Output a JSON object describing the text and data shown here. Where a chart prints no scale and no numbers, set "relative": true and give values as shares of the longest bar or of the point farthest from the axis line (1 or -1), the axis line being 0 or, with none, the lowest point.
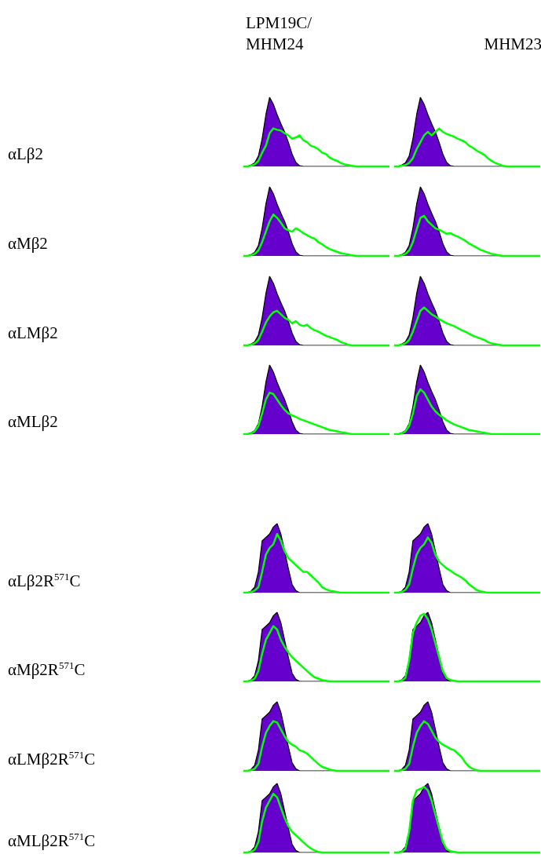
{
  "chart_data": [
    {
      "type": "area",
      "relative": true,
      "title": "LPM19C/MHM24",
      "ylabel": "αLβ2",
      "categories": [
        null,
        null,
        null,
        null,
        null,
        null,
        null,
        null,
        null,
        null,
        null,
        null,
        null,
        null,
        null,
        null,
        null,
        null,
        null,
        null,
        null,
        null,
        null,
        null,
        null,
        null,
        null,
        null,
        null,
        null,
        null,
        null,
        null,
        null,
        null,
        null,
        null,
        null,
        null,
        null
      ],
      "series": [
        {
          "color": "#6600cc",
          "values": [
            0,
            0,
            0.02,
            0.05,
            0.15,
            0.4,
            0.75,
            1,
            0.9,
            0.75,
            0.62,
            0.5,
            0.35,
            0.18,
            0.06,
            0.01,
            0,
            0,
            0,
            0,
            0,
            0,
            0,
            0,
            0,
            0,
            0,
            0,
            0,
            0,
            0,
            0,
            0,
            0,
            0,
            0,
            0,
            0,
            0,
            0
          ]
        },
        {
          "type": "line",
          "color": "#00ff00",
          "values": [
            0,
            0,
            0.01,
            0.03,
            0.08,
            0.2,
            0.3,
            0.48,
            0.55,
            0.53,
            0.52,
            0.48,
            0.45,
            0.4,
            0.42,
            0.45,
            0.38,
            0.35,
            0.3,
            0.28,
            0.25,
            0.2,
            0.18,
            0.13,
            0.1,
            0.08,
            0.05,
            0.03,
            0.02,
            0.01,
            0,
            0,
            0,
            0,
            0,
            0,
            0,
            0,
            0,
            0
          ]
        }
      ]
    },
    {
      "type": "area",
      "relative": true,
      "title": "MHM23",
      "categories": [
        null,
        null,
        null,
        null,
        null,
        null,
        null,
        null,
        null,
        null,
        null,
        null,
        null,
        null,
        null,
        null,
        null,
        null,
        null,
        null,
        null,
        null,
        null,
        null,
        null,
        null,
        null,
        null,
        null,
        null,
        null,
        null,
        null,
        null,
        null,
        null,
        null,
        null,
        null,
        null
      ],
      "series": [
        {
          "color": "#6600cc",
          "values": [
            0,
            0,
            0.02,
            0.05,
            0.15,
            0.4,
            0.75,
            1,
            0.9,
            0.75,
            0.62,
            0.5,
            0.35,
            0.18,
            0.06,
            0.01,
            0,
            0,
            0,
            0,
            0,
            0,
            0,
            0,
            0,
            0,
            0,
            0,
            0,
            0,
            0,
            0,
            0,
            0,
            0,
            0,
            0,
            0,
            0,
            0
          ]
        },
        {
          "type": "line",
          "color": "#00ff00",
          "values": [
            0,
            0,
            0.01,
            0.02,
            0.05,
            0.12,
            0.25,
            0.35,
            0.45,
            0.5,
            0.45,
            0.5,
            0.55,
            0.5,
            0.47,
            0.45,
            0.43,
            0.4,
            0.38,
            0.35,
            0.3,
            0.27,
            0.23,
            0.2,
            0.17,
            0.12,
            0.08,
            0.05,
            0.03,
            0.01,
            0,
            0,
            0,
            0,
            0,
            0,
            0,
            0,
            0,
            0
          ]
        }
      ]
    },
    {
      "type": "area",
      "relative": true,
      "ylabel": "αMβ2",
      "categories": [
        null,
        null,
        null,
        null,
        null,
        null,
        null,
        null,
        null,
        null,
        null,
        null,
        null,
        null,
        null,
        null,
        null,
        null,
        null,
        null,
        null,
        null,
        null,
        null,
        null,
        null,
        null,
        null,
        null,
        null,
        null,
        null,
        null,
        null,
        null,
        null,
        null,
        null,
        null,
        null
      ],
      "series": [
        {
          "color": "#6600cc",
          "values": [
            0,
            0,
            0.02,
            0.05,
            0.15,
            0.4,
            0.75,
            1,
            0.9,
            0.75,
            0.62,
            0.5,
            0.35,
            0.18,
            0.06,
            0.01,
            0,
            0,
            0,
            0,
            0,
            0,
            0,
            0,
            0,
            0,
            0,
            0,
            0,
            0,
            0,
            0,
            0,
            0,
            0,
            0,
            0,
            0,
            0,
            0
          ]
        },
        {
          "type": "line",
          "color": "#00ff00",
          "values": [
            0,
            0,
            0.01,
            0.03,
            0.08,
            0.2,
            0.35,
            0.5,
            0.6,
            0.55,
            0.48,
            0.4,
            0.37,
            0.35,
            0.4,
            0.37,
            0.33,
            0.3,
            0.27,
            0.25,
            0.2,
            0.17,
            0.13,
            0.1,
            0.08,
            0.06,
            0.04,
            0.03,
            0.02,
            0.01,
            0,
            0,
            0,
            0,
            0,
            0,
            0,
            0,
            0,
            0
          ]
        }
      ]
    },
    {
      "type": "area",
      "relative": true,
      "categories": [
        null,
        null,
        null,
        null,
        null,
        null,
        null,
        null,
        null,
        null,
        null,
        null,
        null,
        null,
        null,
        null,
        null,
        null,
        null,
        null,
        null,
        null,
        null,
        null,
        null,
        null,
        null,
        null,
        null,
        null,
        null,
        null,
        null,
        null,
        null,
        null,
        null,
        null,
        null,
        null
      ],
      "series": [
        {
          "color": "#6600cc",
          "values": [
            0,
            0,
            0.02,
            0.05,
            0.15,
            0.4,
            0.75,
            1,
            0.9,
            0.75,
            0.62,
            0.5,
            0.35,
            0.18,
            0.06,
            0.01,
            0,
            0,
            0,
            0,
            0,
            0,
            0,
            0,
            0,
            0,
            0,
            0,
            0,
            0,
            0,
            0,
            0,
            0,
            0,
            0,
            0,
            0,
            0,
            0
          ]
        },
        {
          "type": "line",
          "color": "#00ff00",
          "values": [
            0,
            0,
            0.01,
            0.03,
            0.08,
            0.2,
            0.38,
            0.55,
            0.58,
            0.5,
            0.45,
            0.4,
            0.38,
            0.35,
            0.32,
            0.33,
            0.3,
            0.28,
            0.25,
            0.22,
            0.18,
            0.15,
            0.12,
            0.09,
            0.07,
            0.05,
            0.03,
            0.02,
            0.01,
            0,
            0,
            0,
            0,
            0,
            0,
            0,
            0,
            0,
            0,
            0
          ]
        }
      ]
    },
    {
      "type": "area",
      "relative": true,
      "ylabel": "αLMβ2",
      "categories": [
        null,
        null,
        null,
        null,
        null,
        null,
        null,
        null,
        null,
        null,
        null,
        null,
        null,
        null,
        null,
        null,
        null,
        null,
        null,
        null,
        null,
        null,
        null,
        null,
        null,
        null,
        null,
        null,
        null,
        null,
        null,
        null,
        null,
        null,
        null,
        null,
        null,
        null,
        null,
        null
      ],
      "series": [
        {
          "color": "#6600cc",
          "values": [
            0,
            0,
            0.02,
            0.05,
            0.15,
            0.4,
            0.75,
            1,
            0.9,
            0.75,
            0.62,
            0.5,
            0.35,
            0.18,
            0.06,
            0.01,
            0,
            0,
            0,
            0,
            0,
            0,
            0,
            0,
            0,
            0,
            0,
            0,
            0,
            0,
            0,
            0,
            0,
            0,
            0,
            0,
            0,
            0,
            0,
            0
          ]
        },
        {
          "type": "line",
          "color": "#00ff00",
          "values": [
            0,
            0,
            0.01,
            0.03,
            0.08,
            0.2,
            0.33,
            0.42,
            0.48,
            0.5,
            0.45,
            0.4,
            0.37,
            0.32,
            0.35,
            0.3,
            0.28,
            0.3,
            0.25,
            0.22,
            0.2,
            0.17,
            0.14,
            0.12,
            0.1,
            0.08,
            0.05,
            0.03,
            0.01,
            0,
            0,
            0,
            0,
            0,
            0,
            0,
            0,
            0,
            0,
            0
          ]
        }
      ]
    },
    {
      "type": "area",
      "relative": true,
      "categories": [
        null,
        null,
        null,
        null,
        null,
        null,
        null,
        null,
        null,
        null,
        null,
        null,
        null,
        null,
        null,
        null,
        null,
        null,
        null,
        null,
        null,
        null,
        null,
        null,
        null,
        null,
        null,
        null,
        null,
        null,
        null,
        null,
        null,
        null,
        null,
        null,
        null,
        null,
        null,
        null
      ],
      "series": [
        {
          "color": "#6600cc",
          "values": [
            0,
            0,
            0.02,
            0.05,
            0.15,
            0.4,
            0.75,
            1,
            0.9,
            0.75,
            0.62,
            0.5,
            0.35,
            0.18,
            0.06,
            0.01,
            0,
            0,
            0,
            0,
            0,
            0,
            0,
            0,
            0,
            0,
            0,
            0,
            0,
            0,
            0,
            0,
            0,
            0,
            0,
            0,
            0,
            0,
            0,
            0
          ]
        },
        {
          "type": "line",
          "color": "#00ff00",
          "values": [
            0,
            0,
            0.01,
            0.03,
            0.08,
            0.2,
            0.35,
            0.5,
            0.55,
            0.5,
            0.45,
            0.42,
            0.38,
            0.35,
            0.32,
            0.3,
            0.28,
            0.25,
            0.22,
            0.2,
            0.17,
            0.14,
            0.12,
            0.1,
            0.08,
            0.05,
            0.03,
            0.02,
            0.01,
            0,
            0,
            0,
            0,
            0,
            0,
            0,
            0,
            0,
            0,
            0
          ]
        }
      ]
    },
    {
      "type": "area",
      "relative": true,
      "ylabel": "αMLβ2",
      "categories": [
        null,
        null,
        null,
        null,
        null,
        null,
        null,
        null,
        null,
        null,
        null,
        null,
        null,
        null,
        null,
        null,
        null,
        null,
        null,
        null,
        null,
        null,
        null,
        null,
        null,
        null,
        null,
        null,
        null,
        null,
        null,
        null,
        null,
        null,
        null,
        null,
        null,
        null,
        null,
        null
      ],
      "series": [
        {
          "color": "#6600cc",
          "values": [
            0,
            0,
            0.02,
            0.05,
            0.15,
            0.4,
            0.75,
            1,
            0.9,
            0.75,
            0.62,
            0.5,
            0.35,
            0.18,
            0.06,
            0.01,
            0,
            0,
            0,
            0,
            0,
            0,
            0,
            0,
            0,
            0,
            0,
            0,
            0,
            0,
            0,
            0,
            0,
            0,
            0,
            0,
            0,
            0,
            0,
            0
          ]
        },
        {
          "type": "line",
          "color": "#00ff00",
          "values": [
            0,
            0,
            0.01,
            0.04,
            0.12,
            0.3,
            0.5,
            0.6,
            0.58,
            0.5,
            0.42,
            0.35,
            0.3,
            0.27,
            0.25,
            0.22,
            0.2,
            0.18,
            0.16,
            0.14,
            0.12,
            0.1,
            0.08,
            0.06,
            0.05,
            0.04,
            0.03,
            0.02,
            0.01,
            0,
            0,
            0,
            0,
            0,
            0,
            0,
            0,
            0,
            0,
            0
          ]
        }
      ]
    },
    {
      "type": "area",
      "relative": true,
      "categories": [
        null,
        null,
        null,
        null,
        null,
        null,
        null,
        null,
        null,
        null,
        null,
        null,
        null,
        null,
        null,
        null,
        null,
        null,
        null,
        null,
        null,
        null,
        null,
        null,
        null,
        null,
        null,
        null,
        null,
        null,
        null,
        null,
        null,
        null,
        null,
        null,
        null,
        null,
        null,
        null
      ],
      "series": [
        {
          "color": "#6600cc",
          "values": [
            0,
            0,
            0.02,
            0.05,
            0.15,
            0.4,
            0.75,
            1,
            0.9,
            0.75,
            0.62,
            0.5,
            0.35,
            0.18,
            0.06,
            0.01,
            0,
            0,
            0,
            0,
            0,
            0,
            0,
            0,
            0,
            0,
            0,
            0,
            0,
            0,
            0,
            0,
            0,
            0,
            0,
            0,
            0,
            0,
            0,
            0
          ]
        },
        {
          "type": "line",
          "color": "#00ff00",
          "values": [
            0,
            0,
            0.01,
            0.04,
            0.12,
            0.3,
            0.55,
            0.65,
            0.6,
            0.5,
            0.4,
            0.33,
            0.28,
            0.24,
            0.2,
            0.17,
            0.14,
            0.12,
            0.1,
            0.08,
            0.06,
            0.05,
            0.04,
            0.03,
            0.02,
            0.01,
            0,
            0,
            0,
            0,
            0,
            0,
            0,
            0,
            0,
            0,
            0,
            0,
            0,
            0
          ]
        }
      ]
    },
    {
      "type": "area",
      "relative": true,
      "ylabel": "αLβ2R$^{571}$C",
      "categories": [
        null,
        null,
        null,
        null,
        null,
        null,
        null,
        null,
        null,
        null,
        null,
        null,
        null,
        null,
        null,
        null,
        null,
        null,
        null,
        null,
        null,
        null,
        null,
        null,
        null,
        null,
        null,
        null,
        null,
        null,
        null,
        null,
        null,
        null,
        null,
        null,
        null,
        null,
        null,
        null
      ],
      "series": [
        {
          "color": "#6600cc",
          "values": [
            0,
            0,
            0.02,
            0.08,
            0.3,
            0.75,
            0.8,
            0.85,
            0.95,
            1,
            0.85,
            0.6,
            0.35,
            0.12,
            0.03,
            0,
            0,
            0,
            0,
            0,
            0,
            0,
            0,
            0,
            0,
            0,
            0,
            0,
            0,
            0,
            0,
            0,
            0,
            0,
            0,
            0,
            0,
            0,
            0,
            0
          ]
        },
        {
          "type": "line",
          "color": "#00ff00",
          "values": [
            0,
            0,
            0.01,
            0.03,
            0.08,
            0.3,
            0.55,
            0.65,
            0.7,
            0.85,
            0.75,
            0.6,
            0.5,
            0.45,
            0.4,
            0.35,
            0.3,
            0.3,
            0.25,
            0.2,
            0.15,
            0.08,
            0.05,
            0.03,
            0.02,
            0.01,
            0,
            0,
            0,
            0,
            0,
            0,
            0,
            0,
            0,
            0,
            0,
            0,
            0,
            0
          ]
        }
      ]
    },
    {
      "type": "area",
      "relative": true,
      "categories": [
        null,
        null,
        null,
        null,
        null,
        null,
        null,
        null,
        null,
        null,
        null,
        null,
        null,
        null,
        null,
        null,
        null,
        null,
        null,
        null,
        null,
        null,
        null,
        null,
        null,
        null,
        null,
        null,
        null,
        null,
        null,
        null,
        null,
        null,
        null,
        null,
        null,
        null,
        null,
        null
      ],
      "series": [
        {
          "color": "#6600cc",
          "values": [
            0,
            0,
            0.02,
            0.08,
            0.3,
            0.75,
            0.8,
            0.85,
            0.95,
            1,
            0.85,
            0.6,
            0.35,
            0.12,
            0.03,
            0,
            0,
            0,
            0,
            0,
            0,
            0,
            0,
            0,
            0,
            0,
            0,
            0,
            0,
            0,
            0,
            0,
            0,
            0,
            0,
            0,
            0,
            0,
            0,
            0
          ]
        },
        {
          "type": "line",
          "color": "#00ff00",
          "values": [
            0,
            0,
            0.01,
            0.04,
            0.12,
            0.35,
            0.55,
            0.65,
            0.7,
            0.8,
            0.72,
            0.55,
            0.45,
            0.4,
            0.35,
            0.32,
            0.28,
            0.25,
            0.22,
            0.18,
            0.12,
            0.08,
            0.04,
            0.02,
            0.01,
            0,
            0,
            0,
            0,
            0,
            0,
            0,
            0,
            0,
            0,
            0,
            0,
            0,
            0,
            0
          ]
        }
      ]
    },
    {
      "type": "area",
      "relative": true,
      "ylabel": "αMβ2R$^{571}$C",
      "categories": [
        null,
        null,
        null,
        null,
        null,
        null,
        null,
        null,
        null,
        null,
        null,
        null,
        null,
        null,
        null,
        null,
        null,
        null,
        null,
        null,
        null,
        null,
        null,
        null,
        null,
        null,
        null,
        null,
        null,
        null,
        null,
        null,
        null,
        null,
        null,
        null,
        null,
        null,
        null,
        null
      ],
      "series": [
        {
          "color": "#6600cc",
          "values": [
            0,
            0,
            0.02,
            0.08,
            0.3,
            0.75,
            0.8,
            0.85,
            0.95,
            1,
            0.85,
            0.6,
            0.35,
            0.12,
            0.03,
            0,
            0,
            0,
            0,
            0,
            0,
            0,
            0,
            0,
            0,
            0,
            0,
            0,
            0,
            0,
            0,
            0,
            0,
            0,
            0,
            0,
            0,
            0,
            0,
            0
          ]
        },
        {
          "type": "line",
          "color": "#00ff00",
          "values": [
            0,
            0,
            0.01,
            0.04,
            0.15,
            0.4,
            0.6,
            0.7,
            0.8,
            0.75,
            0.6,
            0.5,
            0.42,
            0.35,
            0.3,
            0.25,
            0.2,
            0.15,
            0.1,
            0.06,
            0.04,
            0.02,
            0.01,
            0,
            0,
            0,
            0,
            0,
            0,
            0,
            0,
            0,
            0,
            0,
            0,
            0,
            0,
            0,
            0,
            0
          ]
        }
      ]
    },
    {
      "type": "area",
      "relative": true,
      "categories": [
        null,
        null,
        null,
        null,
        null,
        null,
        null,
        null,
        null,
        null,
        null,
        null,
        null,
        null,
        null,
        null,
        null,
        null,
        null,
        null,
        null,
        null,
        null,
        null,
        null,
        null,
        null,
        null,
        null,
        null,
        null,
        null,
        null,
        null,
        null,
        null,
        null,
        null,
        null,
        null
      ],
      "series": [
        {
          "color": "#6600cc",
          "values": [
            0,
            0,
            0.02,
            0.08,
            0.3,
            0.75,
            0.8,
            0.85,
            0.95,
            1,
            0.85,
            0.6,
            0.35,
            0.12,
            0.03,
            0,
            0,
            0,
            0,
            0,
            0,
            0,
            0,
            0,
            0,
            0,
            0,
            0,
            0,
            0,
            0,
            0,
            0,
            0,
            0,
            0,
            0,
            0,
            0,
            0
          ]
        },
        {
          "type": "line",
          "color": "#00ff00",
          "values": [
            0,
            0,
            0.01,
            0.05,
            0.3,
            0.7,
            0.85,
            0.95,
            0.98,
            0.9,
            0.75,
            0.55,
            0.35,
            0.15,
            0.05,
            0.02,
            0.01,
            0,
            0,
            0,
            0,
            0,
            0,
            0,
            0,
            0,
            0,
            0,
            0,
            0,
            0,
            0,
            0,
            0,
            0,
            0,
            0,
            0,
            0,
            0
          ]
        }
      ]
    },
    {
      "type": "area",
      "relative": true,
      "ylabel": "αLMβ2R$^{571}$C",
      "categories": [
        null,
        null,
        null,
        null,
        null,
        null,
        null,
        null,
        null,
        null,
        null,
        null,
        null,
        null,
        null,
        null,
        null,
        null,
        null,
        null,
        null,
        null,
        null,
        null,
        null,
        null,
        null,
        null,
        null,
        null,
        null,
        null,
        null,
        null,
        null,
        null,
        null,
        null,
        null,
        null
      ],
      "series": [
        {
          "color": "#6600cc",
          "values": [
            0,
            0,
            0.02,
            0.08,
            0.3,
            0.75,
            0.8,
            0.85,
            0.95,
            1,
            0.85,
            0.6,
            0.35,
            0.12,
            0.03,
            0,
            0,
            0,
            0,
            0,
            0,
            0,
            0,
            0,
            0,
            0,
            0,
            0,
            0,
            0,
            0,
            0,
            0,
            0,
            0,
            0,
            0,
            0,
            0,
            0
          ]
        },
        {
          "type": "line",
          "color": "#00ff00",
          "values": [
            0,
            0,
            0.01,
            0.03,
            0.1,
            0.35,
            0.55,
            0.65,
            0.72,
            0.7,
            0.6,
            0.5,
            0.42,
            0.38,
            0.35,
            0.3,
            0.28,
            0.25,
            0.2,
            0.15,
            0.1,
            0.06,
            0.04,
            0.02,
            0.01,
            0,
            0,
            0,
            0,
            0,
            0,
            0,
            0,
            0,
            0,
            0,
            0,
            0,
            0,
            0
          ]
        }
      ]
    },
    {
      "type": "area",
      "relative": true,
      "categories": [
        null,
        null,
        null,
        null,
        null,
        null,
        null,
        null,
        null,
        null,
        null,
        null,
        null,
        null,
        null,
        null,
        null,
        null,
        null,
        null,
        null,
        null,
        null,
        null,
        null,
        null,
        null,
        null,
        null,
        null,
        null,
        null,
        null,
        null,
        null,
        null,
        null,
        null,
        null,
        null
      ],
      "series": [
        {
          "color": "#6600cc",
          "values": [
            0,
            0,
            0.02,
            0.08,
            0.3,
            0.75,
            0.8,
            0.85,
            0.95,
            1,
            0.85,
            0.6,
            0.35,
            0.12,
            0.03,
            0,
            0,
            0,
            0,
            0,
            0,
            0,
            0,
            0,
            0,
            0,
            0,
            0,
            0,
            0,
            0,
            0,
            0,
            0,
            0,
            0,
            0,
            0,
            0,
            0
          ]
        },
        {
          "type": "line",
          "color": "#00ff00",
          "values": [
            0,
            0,
            0.01,
            0.03,
            0.1,
            0.35,
            0.55,
            0.65,
            0.72,
            0.68,
            0.58,
            0.48,
            0.42,
            0.38,
            0.35,
            0.32,
            0.3,
            0.25,
            0.2,
            0.12,
            0.06,
            0.03,
            0.01,
            0,
            0,
            0,
            0,
            0,
            0,
            0,
            0,
            0,
            0,
            0,
            0,
            0,
            0,
            0,
            0,
            0
          ]
        }
      ]
    },
    {
      "type": "area",
      "relative": true,
      "ylabel": "αMLβ2R$^{571}$C",
      "categories": [
        null,
        null,
        null,
        null,
        null,
        null,
        null,
        null,
        null,
        null,
        null,
        null,
        null,
        null,
        null,
        null,
        null,
        null,
        null,
        null,
        null,
        null,
        null,
        null,
        null,
        null,
        null,
        null,
        null,
        null,
        null,
        null,
        null,
        null,
        null,
        null,
        null,
        null,
        null,
        null
      ],
      "series": [
        {
          "color": "#6600cc",
          "values": [
            0,
            0,
            0.02,
            0.08,
            0.3,
            0.75,
            0.8,
            0.85,
            0.95,
            1,
            0.85,
            0.6,
            0.35,
            0.12,
            0.03,
            0,
            0,
            0,
            0,
            0,
            0,
            0,
            0,
            0,
            0,
            0,
            0,
            0,
            0,
            0,
            0,
            0,
            0,
            0,
            0,
            0,
            0,
            0,
            0,
            0
          ]
        },
        {
          "type": "line",
          "color": "#00ff00",
          "values": [
            0,
            0,
            0.01,
            0.04,
            0.15,
            0.45,
            0.65,
            0.75,
            0.85,
            0.8,
            0.65,
            0.5,
            0.38,
            0.3,
            0.25,
            0.2,
            0.15,
            0.1,
            0.06,
            0.03,
            0.01,
            0,
            0,
            0,
            0,
            0,
            0,
            0,
            0,
            0,
            0,
            0,
            0,
            0,
            0,
            0,
            0,
            0,
            0,
            0
          ]
        }
      ]
    },
    {
      "type": "area",
      "relative": true,
      "categories": [
        null,
        null,
        null,
        null,
        null,
        null,
        null,
        null,
        null,
        null,
        null,
        null,
        null,
        null,
        null,
        null,
        null,
        null,
        null,
        null,
        null,
        null,
        null,
        null,
        null,
        null,
        null,
        null,
        null,
        null,
        null,
        null,
        null,
        null,
        null,
        null,
        null,
        null,
        null,
        null
      ],
      "series": [
        {
          "color": "#6600cc",
          "values": [
            0,
            0,
            0.02,
            0.08,
            0.3,
            0.75,
            0.8,
            0.85,
            0.95,
            1,
            0.85,
            0.6,
            0.35,
            0.12,
            0.03,
            0,
            0,
            0,
            0,
            0,
            0,
            0,
            0,
            0,
            0,
            0,
            0,
            0,
            0,
            0,
            0,
            0,
            0,
            0,
            0,
            0,
            0,
            0,
            0,
            0
          ]
        },
        {
          "type": "line",
          "color": "#00ff00",
          "values": [
            0,
            0,
            0.01,
            0.05,
            0.3,
            0.75,
            0.9,
            0.92,
            0.95,
            0.9,
            0.75,
            0.55,
            0.35,
            0.15,
            0.05,
            0.02,
            0.01,
            0,
            0,
            0,
            0,
            0,
            0,
            0,
            0,
            0,
            0,
            0,
            0,
            0,
            0,
            0,
            0,
            0,
            0,
            0,
            0,
            0,
            0,
            0
          ]
        }
      ]
    }
  ]
}
